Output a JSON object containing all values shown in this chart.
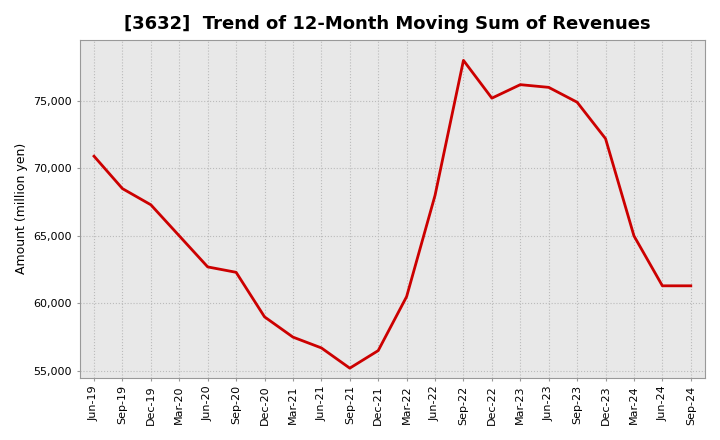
{
  "title": "[3632]  Trend of 12-Month Moving Sum of Revenues",
  "ylabel": "Amount (million yen)",
  "line_color": "#cc0000",
  "background_color": "#ffffff",
  "plot_bg_color": "#e8e8e8",
  "grid_color": "#bbbbbb",
  "x_labels": [
    "Jun-19",
    "Sep-19",
    "Dec-19",
    "Mar-20",
    "Jun-20",
    "Sep-20",
    "Dec-20",
    "Mar-21",
    "Jun-21",
    "Sep-21",
    "Dec-21",
    "Mar-22",
    "Jun-22",
    "Sep-22",
    "Dec-22",
    "Mar-23",
    "Jun-23",
    "Sep-23",
    "Dec-23",
    "Mar-24",
    "Jun-24",
    "Sep-24"
  ],
  "y_values": [
    70900,
    68500,
    67300,
    65000,
    62700,
    62300,
    59000,
    57500,
    56700,
    55200,
    56500,
    60500,
    68000,
    78000,
    75200,
    76200,
    76000,
    74900,
    72200,
    65000,
    61300,
    61300
  ],
  "ylim": [
    54500,
    79500
  ],
  "yticks": [
    55000,
    60000,
    65000,
    70000,
    75000
  ],
  "title_fontsize": 13,
  "label_fontsize": 9,
  "tick_fontsize": 8,
  "line_width": 2.0
}
